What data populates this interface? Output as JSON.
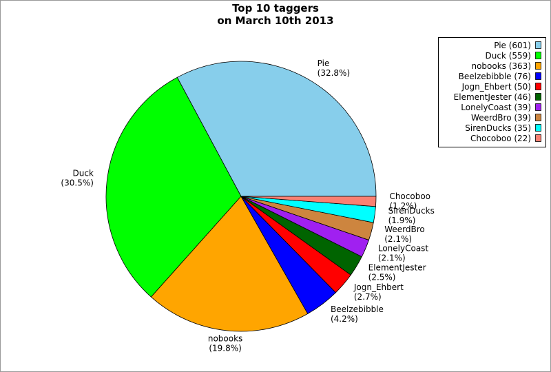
{
  "chart_data": {
    "type": "pie",
    "title": "Top 10 taggers",
    "subtitle": "on March 10th 2013",
    "categories": [
      "Pie",
      "Duck",
      "nobooks",
      "Beelzebibble",
      "Jogn_Ehbert",
      "ElementJester",
      "LonelyCoast",
      "WeerdBro",
      "SirenDucks",
      "Chocoboo"
    ],
    "values": [
      601,
      559,
      363,
      76,
      50,
      46,
      39,
      39,
      35,
      22
    ],
    "percent_labels": [
      "(32.8%)",
      "(30.5%)",
      "(19.8%)",
      "(4.2%)",
      "(2.7%)",
      "(2.5%)",
      "(2.1%)",
      "(2.1%)",
      "(1.9%)",
      "(1.2%)"
    ],
    "legend_labels": [
      "Pie (601)",
      "Duck (559)",
      "nobooks (363)",
      "Beelzebibble (76)",
      "Jogn_Ehbert (50)",
      "ElementJester (46)",
      "LonelyCoast (39)",
      "WeerdBro (39)",
      "SirenDucks (35)",
      "Chocoboo (22)"
    ],
    "colors": [
      "#87ceeb",
      "#00ff00",
      "#ffa500",
      "#0000ff",
      "#ff0000",
      "#006400",
      "#a020f0",
      "#cd853f",
      "#00ffff",
      "#fa8072"
    ],
    "legend": "upper right"
  }
}
